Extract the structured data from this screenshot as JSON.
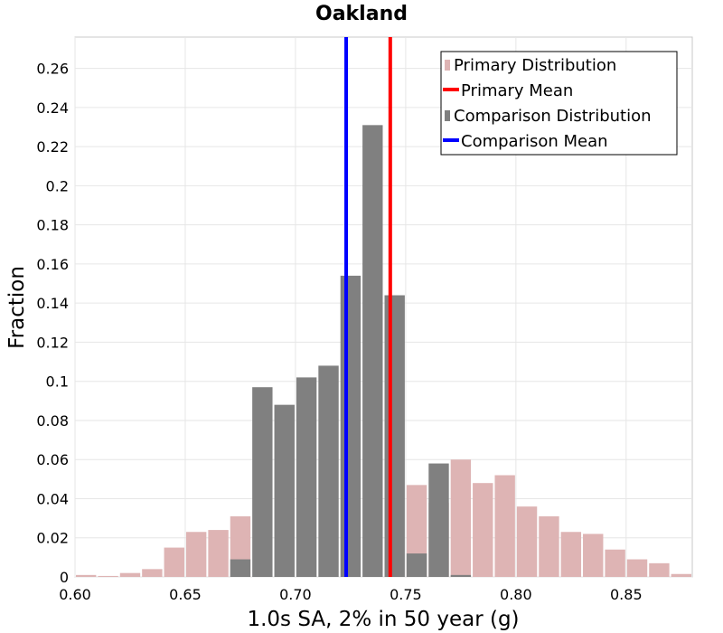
{
  "chart_data": {
    "type": "bar",
    "title": "Oakland",
    "xlabel": "1.0s SA, 2% in 50 year (g)",
    "ylabel": "Fraction",
    "xlim": [
      0.6,
      0.88
    ],
    "ylim": [
      0,
      0.276
    ],
    "grid": true,
    "legend_position": "top-right",
    "bin_width": 0.01,
    "x_ticks": [
      "0.60",
      "0.65",
      "0.70",
      "0.75",
      "0.80",
      "0.85"
    ],
    "x_tick_values": [
      0.6,
      0.65,
      0.7,
      0.75,
      0.8,
      0.85
    ],
    "y_ticks": [
      "0",
      "0.02",
      "0.04",
      "0.06",
      "0.08",
      "0.1",
      "0.12",
      "0.14",
      "0.16",
      "0.18",
      "0.2",
      "0.22",
      "0.24",
      "0.26"
    ],
    "y_tick_values": [
      0,
      0.02,
      0.04,
      0.06,
      0.08,
      0.1,
      0.12,
      0.14,
      0.16,
      0.18,
      0.2,
      0.22,
      0.24,
      0.26
    ],
    "series": [
      {
        "name": "Primary Distribution",
        "kind": "histogram",
        "color": "#deb4b4",
        "bin_centers": [
          0.605,
          0.615,
          0.625,
          0.635,
          0.645,
          0.655,
          0.665,
          0.675,
          0.685,
          0.695,
          0.705,
          0.715,
          0.725,
          0.735,
          0.745,
          0.755,
          0.765,
          0.775,
          0.785,
          0.795,
          0.805,
          0.815,
          0.825,
          0.835,
          0.845,
          0.855,
          0.865,
          0.875
        ],
        "values": [
          0.001,
          0.0005,
          0.002,
          0.004,
          0.015,
          0.023,
          0.024,
          0.031,
          0.0,
          0.0,
          0.0,
          0.0,
          0.0,
          0.0,
          0.0,
          0.047,
          0.038,
          0.06,
          0.048,
          0.052,
          0.036,
          0.031,
          0.023,
          0.022,
          0.014,
          0.009,
          0.007,
          0.0015
        ]
      },
      {
        "name": "Comparison Distribution",
        "kind": "histogram",
        "color": "#808080",
        "bin_centers": [
          0.675,
          0.685,
          0.695,
          0.705,
          0.715,
          0.725,
          0.735,
          0.745,
          0.755,
          0.765,
          0.775
        ],
        "values": [
          0.009,
          0.097,
          0.088,
          0.102,
          0.108,
          0.154,
          0.231,
          0.144,
          0.012,
          0.058,
          0.001
        ]
      },
      {
        "name": "Primary Mean",
        "kind": "vline",
        "color": "#ff0000",
        "x": 0.743
      },
      {
        "name": "Comparison Mean",
        "kind": "vline",
        "color": "#0000ff",
        "x": 0.723
      }
    ]
  }
}
